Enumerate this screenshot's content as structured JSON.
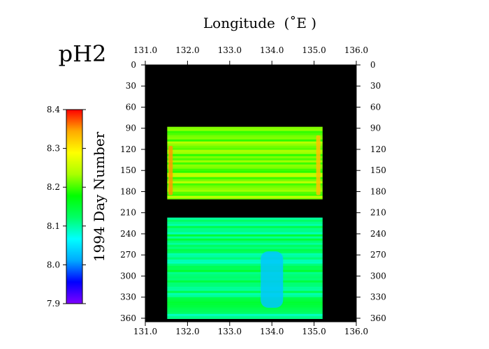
{
  "chart_data": {
    "type": "heatmap",
    "title": "pH2",
    "xlabel": "Longitude  (˚E )",
    "ylabel": "1994  Day Number",
    "x_ticks": [
      "131.0",
      "132.0",
      "133.0",
      "134.0",
      "135.0",
      "136.0"
    ],
    "xlim": [
      131.0,
      136.0
    ],
    "y_ticks": [
      "0",
      "30",
      "60",
      "90",
      "120",
      "150",
      "180",
      "210",
      "240",
      "270",
      "300",
      "330",
      "360"
    ],
    "ylim": [
      0,
      365
    ],
    "y_inverted": true,
    "colorbar": {
      "ticks": [
        "7.9",
        "8.0",
        "8.1",
        "8.2",
        "8.3",
        "8.4"
      ],
      "range": [
        7.9,
        8.4
      ],
      "colors": [
        "#7f00ff",
        "#0000ff",
        "#00aaff",
        "#00ffff",
        "#00ff66",
        "#00ff00",
        "#aaff00",
        "#ffff00",
        "#ffaa00",
        "#ff0000"
      ]
    },
    "background_color": "#000000",
    "data_blocks": [
      {
        "day_start": 88,
        "day_end": 191,
        "lon_start": 131.52,
        "lon_end": 135.2,
        "typical_value": 8.22
      },
      {
        "day_start": 217,
        "day_end": 361,
        "lon_start": 131.52,
        "lon_end": 135.2,
        "typical_value": 8.12
      }
    ],
    "features": [
      {
        "desc": "high values at western edge",
        "lon": 131.6,
        "day_start": 115,
        "day_end": 185,
        "value": 8.35
      },
      {
        "desc": "high values at eastern edge",
        "lon": 135.1,
        "day_start": 100,
        "day_end": 185,
        "value": 8.33
      },
      {
        "desc": "low values near 134E",
        "lon": 134.0,
        "day_start": 265,
        "day_end": 345,
        "value": 8.03
      }
    ]
  }
}
